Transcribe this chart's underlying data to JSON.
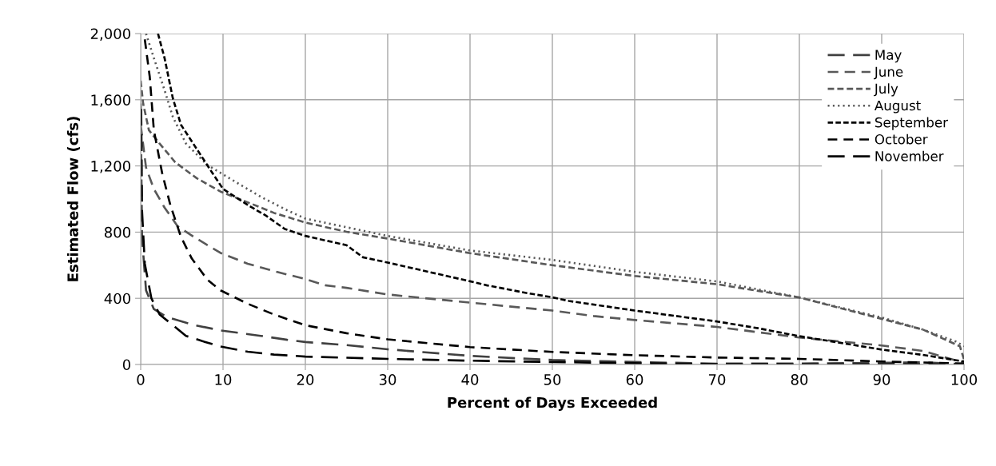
{
  "chart_data": {
    "type": "line",
    "xlabel": "Percent of Days Exceeded",
    "ylabel": "Estimated Flow (cfs)",
    "xlim": [
      0,
      100
    ],
    "xticks": [
      0,
      10,
      20,
      30,
      40,
      50,
      60,
      70,
      80,
      90,
      100
    ],
    "ylim": [
      0,
      2000
    ],
    "yticks": [
      {
        "value": 0,
        "label": "0"
      },
      {
        "value": 400,
        "label": "400"
      },
      {
        "value": 800,
        "label": "800"
      },
      {
        "value": 1200,
        "label": "1,200"
      },
      {
        "value": 1600,
        "label": "1,600"
      },
      {
        "value": 2000,
        "label": "2,000"
      }
    ],
    "grid": true,
    "legend": "top right",
    "marker": "none",
    "series": [
      {
        "name": "May",
        "color": "#404040",
        "line_style": "dashed",
        "x": [
          0,
          0.16,
          0.65,
          1.6,
          3.2,
          6.5,
          9.7,
          14.6,
          17.8,
          20,
          25,
          30,
          40,
          50,
          60,
          70,
          80,
          90,
          95,
          100
        ],
        "values": [
          1577,
          770,
          448,
          335,
          286,
          238,
          206,
          173,
          149,
          136,
          117,
          92,
          52,
          27,
          15,
          5,
          6,
          10,
          13,
          2
        ]
      },
      {
        "name": "June",
        "color": "#595959",
        "line_style": "dashed",
        "x": [
          0,
          0.65,
          1.6,
          2.9,
          4.5,
          6.5,
          9.7,
          13,
          16.5,
          19.8,
          22.4,
          25,
          30,
          40,
          50,
          55,
          60,
          70,
          80,
          90,
          95,
          100
        ],
        "values": [
          1448,
          1190,
          1061,
          948,
          835,
          770,
          674,
          609,
          560,
          519,
          479,
          463,
          423,
          374,
          326,
          293,
          269,
          227,
          163,
          115,
          82,
          10
        ]
      },
      {
        "name": "July",
        "color": "#595959",
        "line_style": "dashed",
        "x": [
          0,
          0.3,
          1.0,
          2.3,
          4.2,
          6.8,
          9.7,
          13,
          16.2,
          20,
          25,
          30,
          40,
          50,
          60,
          70,
          80,
          90,
          95,
          99.5,
          100
        ],
        "values": [
          1715,
          1577,
          1416,
          1335,
          1222,
          1126,
          1045,
          980,
          916,
          858,
          802,
          761,
          673,
          600,
          535,
          485,
          405,
          276,
          211,
          110,
          30
        ]
      },
      {
        "name": "August",
        "color": "#595959",
        "line_style": "dotted",
        "x": [
          0.65,
          1.6,
          2.9,
          3.9,
          5.5,
          8.1,
          11.3,
          14.6,
          17.8,
          20,
          30,
          40,
          50,
          60,
          70,
          80,
          90,
          95,
          99,
          100
        ],
        "values": [
          2000,
          1852,
          1658,
          1497,
          1335,
          1206,
          1110,
          1013,
          932,
          882,
          777,
          689,
          632,
          560,
          502,
          405,
          284,
          211,
          139,
          110
        ]
      },
      {
        "name": "September",
        "color": "#000000",
        "line_style": "dashed",
        "x": [
          2.1,
          2.9,
          3.9,
          4.9,
          6.8,
          8.7,
          10,
          13,
          15.2,
          17.5,
          20,
          25,
          27,
          30,
          40,
          42,
          47,
          50,
          52,
          60,
          70,
          75,
          80,
          85,
          90,
          95,
          100
        ],
        "values": [
          2000,
          1852,
          1610,
          1448,
          1303,
          1158,
          1061,
          964,
          900,
          819,
          777,
          721,
          648,
          616,
          503,
          479,
          431,
          406,
          384,
          326,
          260,
          219,
          171,
          131,
          90,
          58,
          18
        ]
      },
      {
        "name": "October",
        "color": "#000000",
        "line_style": "dashed",
        "x": [
          0.5,
          1.1,
          1.6,
          2.6,
          3.6,
          4.9,
          6.2,
          8.1,
          9.7,
          13,
          16.2,
          20,
          25,
          30,
          40,
          50,
          60,
          70,
          80,
          90,
          100
        ],
        "values": [
          1965,
          1739,
          1416,
          1158,
          964,
          770,
          641,
          512,
          448,
          367,
          302,
          237,
          189,
          152,
          105,
          76,
          56,
          42,
          34,
          18,
          6
        ]
      },
      {
        "name": "November",
        "color": "#000000",
        "line_style": "dashed",
        "x": [
          0.06,
          0.16,
          0.5,
          1.3,
          2.3,
          3.9,
          5.5,
          7.5,
          9.7,
          13,
          16.2,
          20,
          30,
          40,
          50,
          60,
          70,
          100
        ],
        "values": [
          1545,
          932,
          609,
          400,
          302,
          238,
          173,
          141,
          109,
          77,
          60,
          48,
          34,
          23,
          15,
          8,
          2,
          0
        ]
      }
    ]
  }
}
